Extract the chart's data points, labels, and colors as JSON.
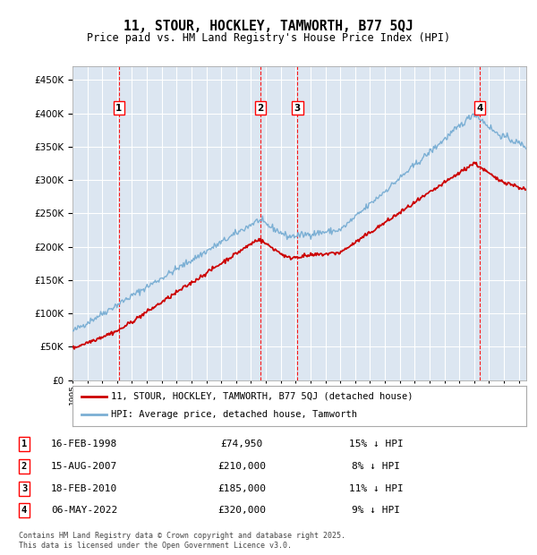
{
  "title": "11, STOUR, HOCKLEY, TAMWORTH, B77 5QJ",
  "subtitle": "Price paid vs. HM Land Registry's House Price Index (HPI)",
  "legend_line1": "11, STOUR, HOCKLEY, TAMWORTH, B77 5QJ (detached house)",
  "legend_line2": "HPI: Average price, detached house, Tamworth",
  "footer": "Contains HM Land Registry data © Crown copyright and database right 2025.\nThis data is licensed under the Open Government Licence v3.0.",
  "transactions": [
    {
      "num": 1,
      "date": "16-FEB-1998",
      "price": "£74,950",
      "pct": "15% ↓ HPI",
      "year": 1998.12
    },
    {
      "num": 2,
      "date": "15-AUG-2007",
      "price": "£210,000",
      "pct": "8% ↓ HPI",
      "year": 2007.62
    },
    {
      "num": 3,
      "date": "18-FEB-2010",
      "price": "£185,000",
      "pct": "11% ↓ HPI",
      "year": 2010.12
    },
    {
      "num": 4,
      "date": "06-MAY-2022",
      "price": "£320,000",
      "pct": "9% ↓ HPI",
      "year": 2022.37
    }
  ],
  "transaction_prices": [
    74950,
    210000,
    185000,
    320000
  ],
  "transaction_years": [
    1998.12,
    2007.62,
    2010.12,
    2022.37
  ],
  "ylim": [
    0,
    470000
  ],
  "yticks": [
    0,
    50000,
    100000,
    150000,
    200000,
    250000,
    300000,
    350000,
    400000,
    450000
  ],
  "background_color": "#dce6f1",
  "line_color_red": "#cc0000",
  "line_color_blue": "#7bafd4",
  "grid_color": "#ffffff",
  "xmin": 1995.0,
  "xmax": 2025.5
}
